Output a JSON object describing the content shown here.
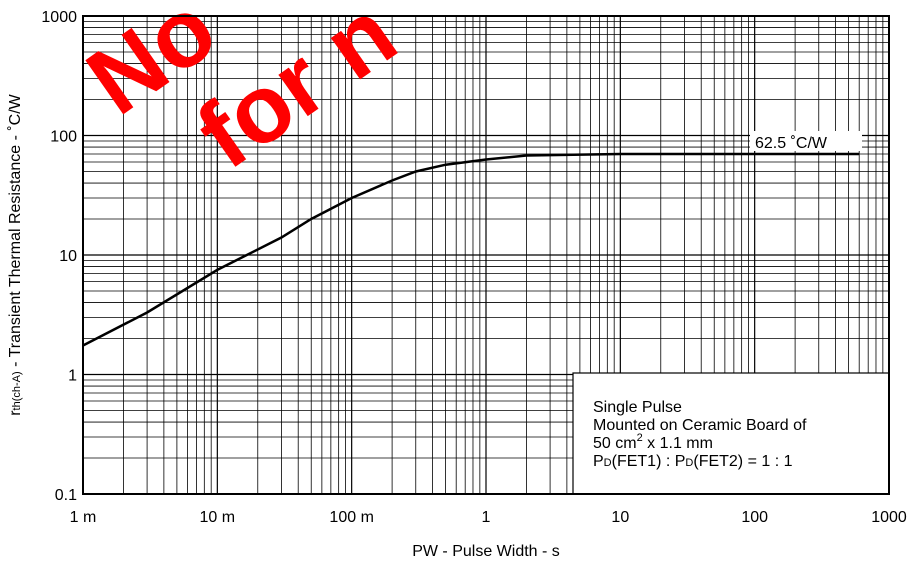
{
  "chart_data": {
    "type": "line",
    "x_label": "PW -  Pulse Width - s",
    "y_label_parts": [
      "r",
      "th(ch-A)",
      " - Transient Thermal Resistance - ˚C/W"
    ],
    "log_x": true,
    "log_y": true,
    "grid": true,
    "minor_grid": true,
    "xlim": [
      0.001,
      1000
    ],
    "ylim": [
      0.1,
      1000
    ],
    "xticks": [
      {
        "value": 0.001,
        "label": "1 m"
      },
      {
        "value": 0.01,
        "label": "10 m"
      },
      {
        "value": 0.1,
        "label": "100 m"
      },
      1,
      10,
      100,
      1000
    ],
    "yticks": [
      0.1,
      1,
      10,
      100,
      1000
    ],
    "series": [
      {
        "color": "#000000",
        "x": [
          0.001,
          0.003,
          0.01,
          0.03,
          0.05,
          0.1,
          0.2,
          0.3,
          0.5,
          1,
          2,
          10,
          100,
          600
        ],
        "values": [
          1.75,
          3.3,
          7.5,
          14,
          20,
          30,
          42,
          50,
          57,
          63,
          68,
          70,
          70,
          70
        ]
      }
    ],
    "annotation": "62.5 ˚C/W",
    "note_lines": [
      "Single Pulse",
      "Mounted on Ceramic Board of"
    ],
    "note_line3_parts": [
      "50 cm",
      "2",
      " x 1.1 mm"
    ],
    "note_line4_parts": [
      "P",
      "D",
      "(FET1) : P",
      "D",
      "(FET2) = 1 : 1"
    ],
    "watermark": [
      "No",
      "for n"
    ]
  }
}
